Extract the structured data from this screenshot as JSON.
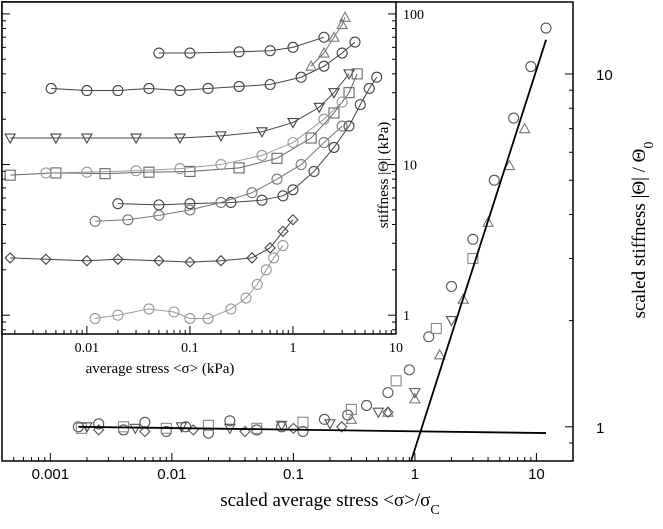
{
  "chart_data": [
    {
      "type": "scatter",
      "panel": "main",
      "xlabel": "scaled average stress <σ>/σ",
      "xlabel_sub": "C",
      "ylabel": "scaled stiffness |Θ| / Θ",
      "ylabel_sub": "0",
      "x_scale": "log",
      "y_scale": "log",
      "xlim": [
        0.0004,
        20
      ],
      "ylim": [
        0.8,
        16
      ],
      "x_ticks": [
        0.001,
        0.01,
        0.1,
        1,
        10
      ],
      "x_tick_labels": [
        "0.001",
        "0.01",
        "0.1",
        "1",
        "10"
      ],
      "y_ticks": [
        1,
        10
      ],
      "y_tick_labels": [
        "1",
        "10"
      ],
      "series": [
        {
          "marker": "circle",
          "color": "#555555",
          "points": [
            [
              0.0017,
              1.0
            ],
            [
              0.0025,
              1.02
            ],
            [
              0.004,
              0.98
            ],
            [
              0.006,
              1.03
            ],
            [
              0.009,
              0.97
            ],
            [
              0.013,
              1.0
            ],
            [
              0.02,
              0.96
            ],
            [
              0.03,
              1.04
            ],
            [
              0.05,
              0.98
            ],
            [
              0.08,
              1.0
            ],
            [
              0.12,
              0.97
            ],
            [
              0.18,
              1.05
            ],
            [
              0.28,
              1.08
            ],
            [
              0.4,
              1.15
            ],
            [
              0.6,
              1.25
            ],
            [
              0.9,
              1.45
            ],
            [
              1.3,
              1.8
            ],
            [
              2.0,
              2.5
            ],
            [
              3.0,
              3.4
            ],
            [
              4.5,
              5.0
            ],
            [
              6.5,
              7.5
            ],
            [
              9.0,
              10.5
            ],
            [
              12.0,
              13.5
            ]
          ]
        },
        {
          "marker": "square",
          "color": "#888888",
          "points": [
            [
              0.0018,
              0.99
            ],
            [
              0.004,
              1.0
            ],
            [
              0.009,
              0.99
            ],
            [
              0.02,
              1.01
            ],
            [
              0.05,
              0.99
            ],
            [
              0.12,
              1.03
            ],
            [
              0.3,
              1.12
            ],
            [
              0.7,
              1.35
            ],
            [
              1.5,
              1.9
            ],
            [
              3.0,
              3.0
            ]
          ]
        },
        {
          "marker": "triangle-up",
          "color": "#777777",
          "points": [
            [
              0.3,
              1.05
            ],
            [
              0.6,
              1.1
            ],
            [
              1.0,
              1.2
            ],
            [
              1.6,
              1.6
            ],
            [
              2.5,
              2.3
            ],
            [
              4.0,
              3.8
            ],
            [
              6.0,
              5.5
            ],
            [
              8.0,
              7.0
            ]
          ]
        },
        {
          "marker": "triangle-down",
          "color": "#555555",
          "points": [
            [
              0.002,
              1.0
            ],
            [
              0.005,
              0.99
            ],
            [
              0.012,
              1.0
            ],
            [
              0.03,
              0.99
            ],
            [
              0.08,
              1.01
            ],
            [
              0.2,
              1.02
            ],
            [
              0.5,
              1.1
            ],
            [
              1.0,
              1.25
            ],
            [
              2.0,
              2.0
            ]
          ]
        },
        {
          "marker": "diamond",
          "color": "#555555",
          "points": [
            [
              0.0025,
              0.98
            ],
            [
              0.006,
              0.97
            ],
            [
              0.015,
              0.98
            ],
            [
              0.04,
              0.97
            ],
            [
              0.1,
              0.99
            ],
            [
              0.25,
              1.0
            ],
            [
              0.6,
              1.1
            ]
          ]
        }
      ],
      "fit_lines": [
        {
          "points": [
            [
              0.0017,
              1.0
            ],
            [
              12.0,
              0.96
            ]
          ]
        },
        {
          "points": [
            [
              0.93,
              0.8
            ],
            [
              12.0,
              12.5
            ]
          ]
        }
      ]
    },
    {
      "type": "scatter",
      "panel": "inset",
      "xlabel": "average stress <σ>  (kPa)",
      "ylabel": "stiffness |Θ|  (kPa)",
      "x_scale": "log",
      "y_scale": "log",
      "xlim": [
        0.0015,
        10
      ],
      "ylim": [
        0.75,
        120
      ],
      "x_ticks": [
        0.01,
        0.1,
        1,
        10
      ],
      "x_tick_labels": [
        "0.01",
        "0.1",
        "1",
        "10"
      ],
      "y_ticks": [
        1,
        10,
        100
      ],
      "y_tick_labels": [
        "1",
        "10",
        "100"
      ],
      "series": [
        {
          "marker": "circle",
          "color": "#444444",
          "points": [
            [
              0.0045,
              32
            ],
            [
              0.01,
              31
            ],
            [
              0.02,
              31
            ],
            [
              0.04,
              32
            ],
            [
              0.08,
              31
            ],
            [
              0.15,
              32
            ],
            [
              0.3,
              33
            ],
            [
              0.6,
              34
            ],
            [
              1.2,
              38
            ],
            [
              2.0,
              45
            ],
            [
              3.0,
              55
            ],
            [
              4.0,
              65
            ]
          ]
        },
        {
          "marker": "circle",
          "color": "#444444",
          "points": [
            [
              0.05,
              55
            ],
            [
              0.1,
              55
            ],
            [
              0.3,
              56
            ],
            [
              0.6,
              57
            ],
            [
              1.0,
              60
            ],
            [
              2.0,
              70
            ]
          ]
        },
        {
          "marker": "triangle-up",
          "color": "#777777",
          "points": [
            [
              1.5,
              45
            ],
            [
              2.0,
              55
            ],
            [
              2.5,
              70
            ],
            [
              3.0,
              85
            ],
            [
              3.2,
              95
            ]
          ]
        },
        {
          "marker": "triangle-down",
          "color": "#444444",
          "points": [
            [
              0.0018,
              15
            ],
            [
              0.005,
              15
            ],
            [
              0.01,
              15
            ],
            [
              0.03,
              15
            ],
            [
              0.08,
              15
            ],
            [
              0.2,
              15.5
            ],
            [
              0.5,
              16.5
            ],
            [
              1.0,
              19
            ],
            [
              1.8,
              24
            ],
            [
              2.5,
              30
            ],
            [
              3.5,
              40
            ]
          ]
        },
        {
          "marker": "square",
          "color": "#666666",
          "points": [
            [
              0.0018,
              8.5
            ],
            [
              0.005,
              8.8
            ],
            [
              0.015,
              8.7
            ],
            [
              0.04,
              8.9
            ],
            [
              0.1,
              9.0
            ],
            [
              0.3,
              9.5
            ],
            [
              0.7,
              11
            ],
            [
              1.5,
              15
            ],
            [
              2.5,
              22
            ],
            [
              3.5,
              30
            ],
            [
              4.2,
              40
            ]
          ]
        },
        {
          "marker": "circle",
          "color": "#999999",
          "points": [
            [
              0.004,
              8.8
            ],
            [
              0.01,
              8.9
            ],
            [
              0.03,
              9.1
            ],
            [
              0.08,
              9.4
            ],
            [
              0.2,
              10
            ],
            [
              0.5,
              11.5
            ],
            [
              1.0,
              14
            ],
            [
              2.0,
              20
            ],
            [
              3.0,
              26
            ]
          ]
        },
        {
          "marker": "circle",
          "color": "#444444",
          "points": [
            [
              0.02,
              5.5
            ],
            [
              0.05,
              5.4
            ],
            [
              0.1,
              5.5
            ],
            [
              0.25,
              5.6
            ],
            [
              0.5,
              5.8
            ],
            [
              0.8,
              6.2
            ],
            [
              1.0,
              6.8
            ],
            [
              1.6,
              9.0
            ],
            [
              2.5,
              13
            ],
            [
              3.5,
              18
            ],
            [
              4.5,
              25
            ],
            [
              5.5,
              32
            ],
            [
              6.5,
              38
            ]
          ]
        },
        {
          "marker": "circle",
          "color": "#777777",
          "points": [
            [
              0.012,
              4.2
            ],
            [
              0.025,
              4.3
            ],
            [
              0.05,
              4.6
            ],
            [
              0.1,
              5.0
            ],
            [
              0.2,
              5.6
            ],
            [
              0.4,
              6.5
            ],
            [
              0.7,
              8.0
            ],
            [
              1.2,
              10
            ],
            [
              2.0,
              14
            ],
            [
              3.0,
              18
            ]
          ]
        },
        {
          "marker": "diamond",
          "color": "#444444",
          "points": [
            [
              0.0018,
              2.4
            ],
            [
              0.004,
              2.35
            ],
            [
              0.01,
              2.3
            ],
            [
              0.02,
              2.35
            ],
            [
              0.05,
              2.3
            ],
            [
              0.1,
              2.25
            ],
            [
              0.2,
              2.3
            ],
            [
              0.4,
              2.4
            ],
            [
              0.6,
              2.8
            ],
            [
              0.8,
              3.6
            ],
            [
              1.0,
              4.3
            ]
          ]
        },
        {
          "marker": "circle",
          "color": "#999999",
          "points": [
            [
              0.012,
              0.95
            ],
            [
              0.02,
              1.0
            ],
            [
              0.04,
              1.1
            ],
            [
              0.07,
              1.05
            ],
            [
              0.1,
              0.95
            ],
            [
              0.15,
              0.95
            ],
            [
              0.25,
              1.1
            ],
            [
              0.35,
              1.3
            ],
            [
              0.45,
              1.6
            ],
            [
              0.55,
              2.0
            ],
            [
              0.65,
              2.4
            ],
            [
              0.8,
              2.9
            ]
          ]
        }
      ]
    }
  ]
}
